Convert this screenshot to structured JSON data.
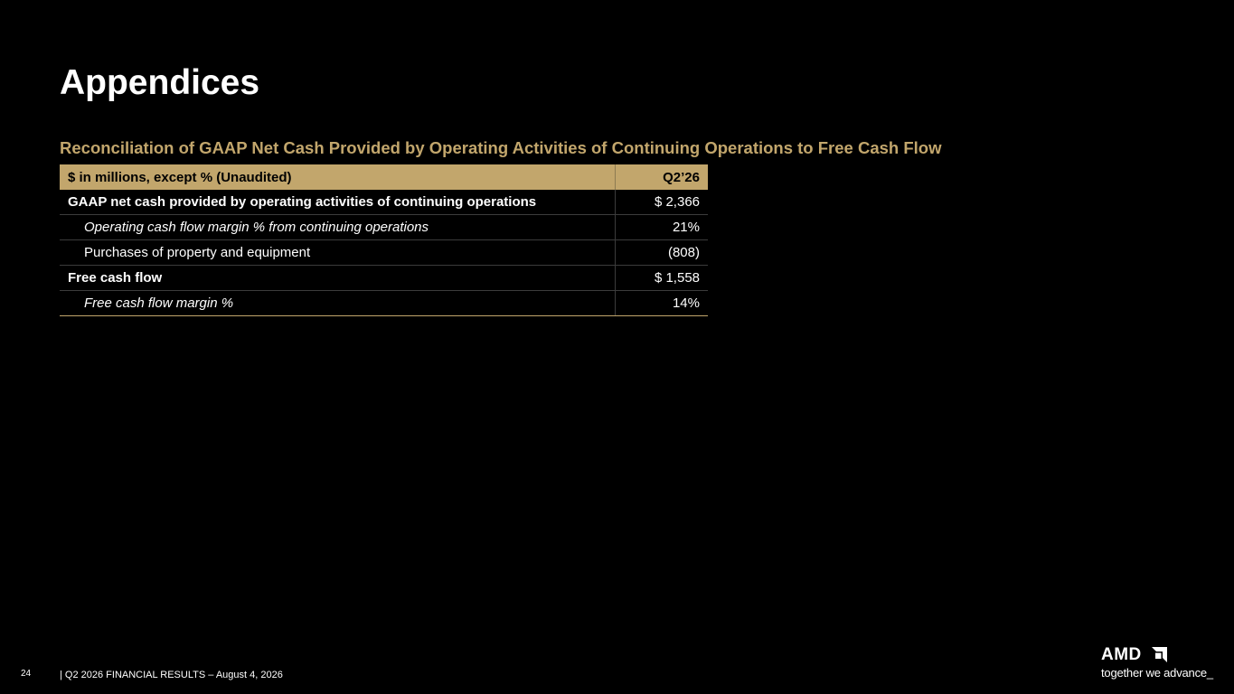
{
  "slide": {
    "title": "Appendices",
    "subtitle": "Reconciliation of GAAP Net Cash Provided by Operating Activities of Continuing Operations to Free Cash Flow"
  },
  "table": {
    "header": {
      "label": "$ in millions, except % (Unaudited)",
      "period": "Q2’26"
    },
    "rows": [
      {
        "label": "GAAP net cash provided by operating activities of continuing operations",
        "value": "$ 2,366"
      },
      {
        "label": "Operating cash flow margin % from continuing operations",
        "value": "21%"
      },
      {
        "label": "Purchases of property and equipment",
        "value": "(808)"
      },
      {
        "label": "Free cash flow",
        "value": "$ 1,558"
      },
      {
        "label": "Free cash flow margin %",
        "value": "14%"
      }
    ]
  },
  "footer": {
    "page_number": "24",
    "text": "|   Q2 2026 FINANCIAL RESULTS – August 4, 2026"
  },
  "logo": {
    "wordmark": "AMD",
    "icon": "amd-arrow-icon",
    "tagline": "together we advance_"
  },
  "colors": {
    "background": "#000000",
    "accent_gold": "#c2a66c",
    "text": "#ffffff"
  }
}
